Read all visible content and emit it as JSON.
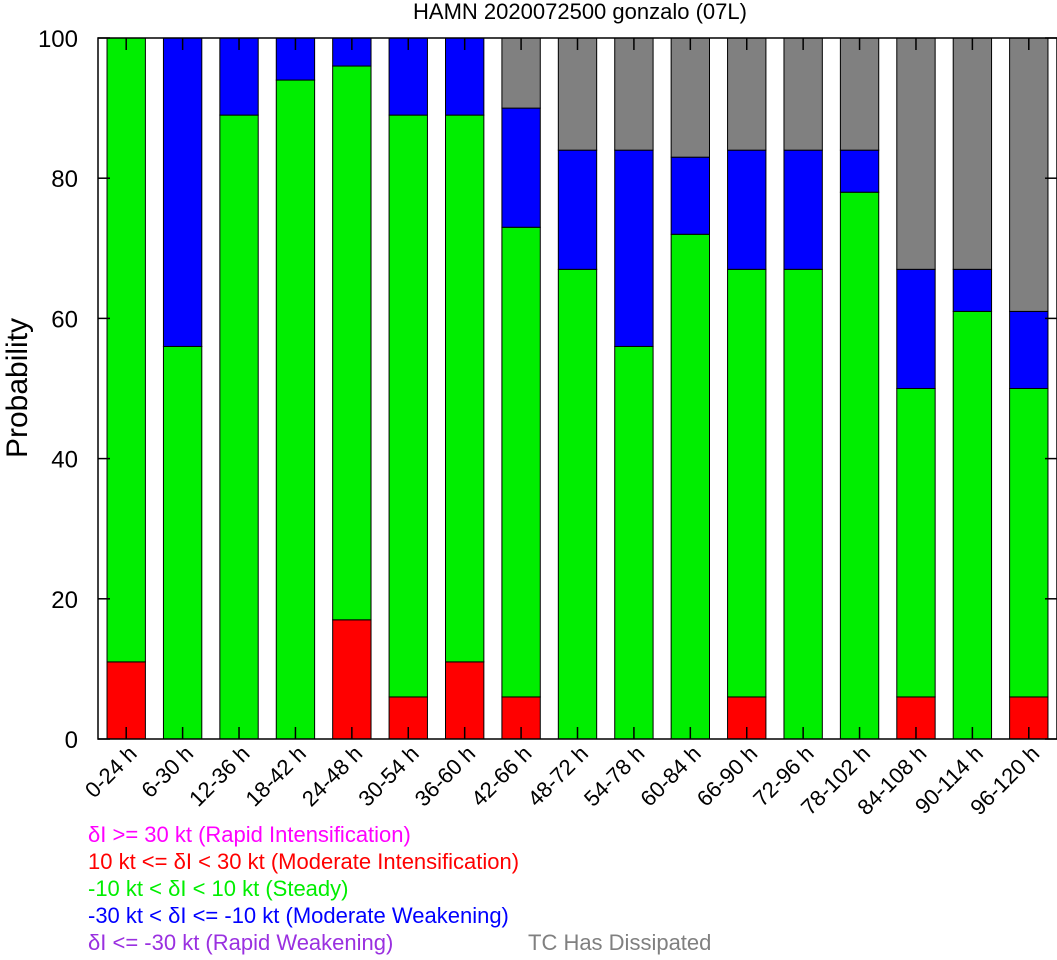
{
  "chart_data": {
    "type": "bar",
    "stacked": true,
    "title": "HAMN 2020072500 gonzalo (07L)",
    "xlabel": "",
    "ylabel": "Probability",
    "ylim": [
      0,
      100
    ],
    "yticks": [
      0,
      20,
      40,
      60,
      80,
      100
    ],
    "grid": false,
    "categories": [
      "0-24 h",
      "6-30 h",
      "12-36 h",
      "18-42 h",
      "24-48 h",
      "30-54 h",
      "36-60 h",
      "42-66 h",
      "48-72 h",
      "54-78 h",
      "60-84 h",
      "66-90 h",
      "72-96 h",
      "78-102 h",
      "84-108 h",
      "90-114 h",
      "96-120 h"
    ],
    "series": [
      {
        "name": "10 kt <= δI < 30 kt (Moderate Intensification)",
        "color": "#ff0000",
        "values": [
          11,
          0,
          0,
          0,
          17,
          6,
          11,
          6,
          0,
          0,
          0,
          6,
          0,
          0,
          6,
          0,
          6
        ]
      },
      {
        "name": "-10 kt < δI < 10 kt (Steady)",
        "color": "#00ee00",
        "values": [
          89,
          56,
          89,
          94,
          79,
          83,
          78,
          67,
          67,
          56,
          72,
          61,
          67,
          78,
          44,
          61,
          44
        ]
      },
      {
        "name": "-30 kt < δI <= -10 kt (Moderate Weakening)",
        "color": "#0000ff",
        "values": [
          0,
          44,
          11,
          6,
          4,
          11,
          11,
          17,
          17,
          28,
          11,
          17,
          17,
          6,
          17,
          6,
          11
        ]
      },
      {
        "name": "TC Has Dissipated",
        "color": "#808080",
        "values": [
          0,
          0,
          0,
          0,
          0,
          0,
          0,
          10,
          16,
          16,
          17,
          16,
          16,
          16,
          33,
          33,
          39
        ]
      }
    ]
  },
  "legend": {
    "lines": [
      {
        "text": "δI >= 30 kt (Rapid Intensification)",
        "color": "#ff00ff"
      },
      {
        "text": "10 kt <= δI < 30 kt (Moderate Intensification)",
        "color": "#ff0000"
      },
      {
        "text": "-10 kt < δI < 10 kt (Steady)",
        "color": "#00ee00"
      },
      {
        "text": "-30 kt < δI <= -10 kt (Moderate Weakening)",
        "color": "#0000ff"
      },
      {
        "text": "δI <= -30 kt (Rapid Weakening)",
        "color": "#9a30e0"
      }
    ],
    "dissipated": {
      "text": "TC Has Dissipated",
      "color": "#808080"
    }
  }
}
